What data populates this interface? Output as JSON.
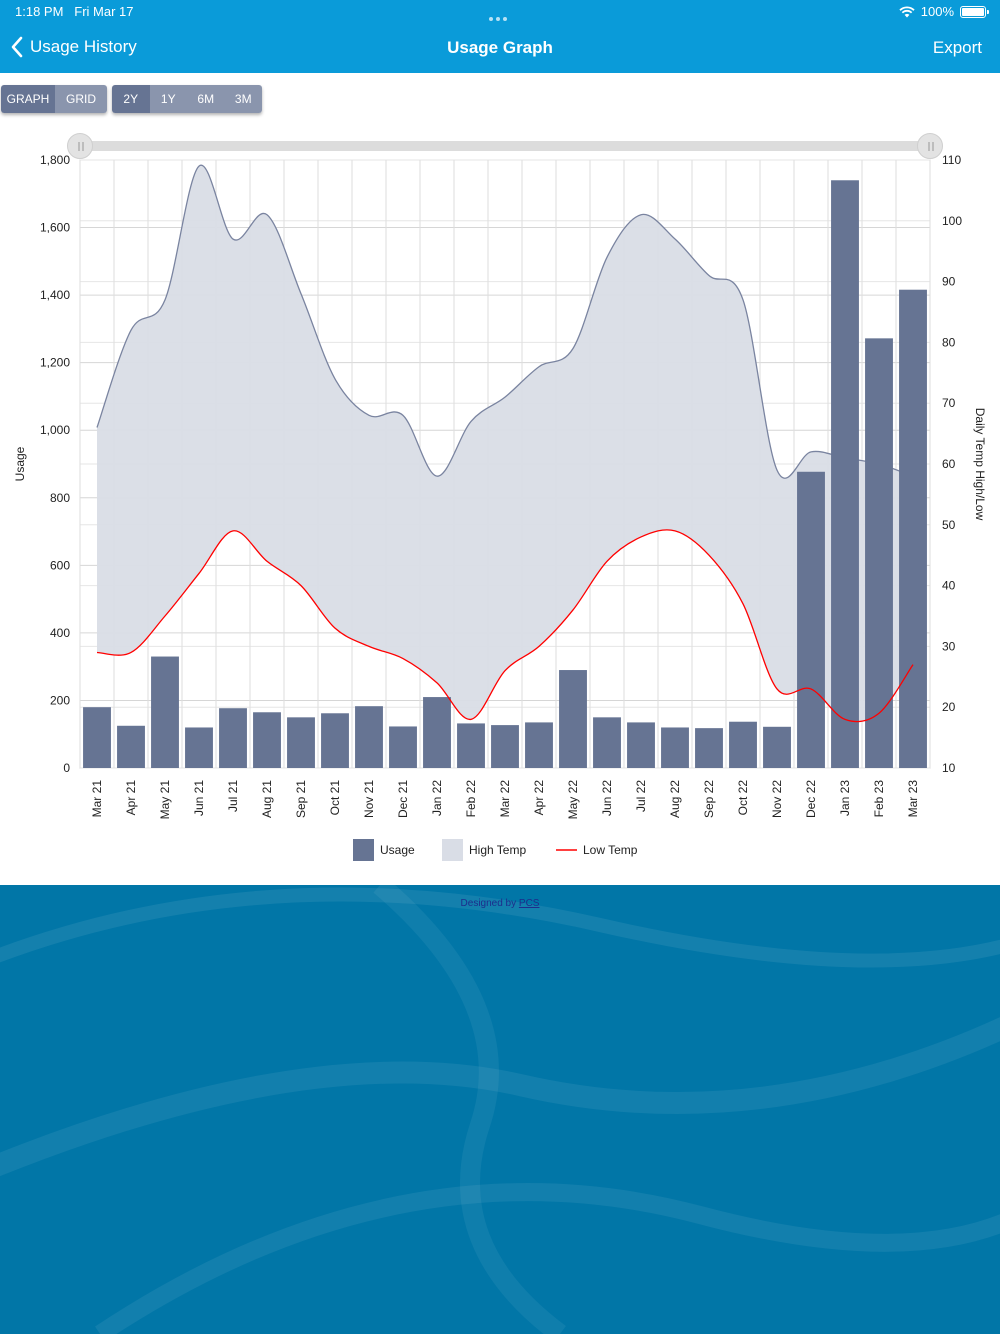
{
  "status_bar": {
    "time": "1:18 PM",
    "date": "Fri Mar 17",
    "battery": "100%"
  },
  "nav": {
    "back_label": "Usage History",
    "title": "Usage Graph",
    "export_label": "Export"
  },
  "view_toggle": [
    "GRAPH",
    "GRID"
  ],
  "range_toggle": [
    "2Y",
    "1Y",
    "6M",
    "3M"
  ],
  "selected_view": "GRAPH",
  "selected_range": "2Y",
  "footer": {
    "credit_prefix": "Designed by",
    "credit_link": "PCS"
  },
  "colors": {
    "header": "#0a9bd9",
    "usage_bar": "#667493",
    "high_temp_fill": "#d9dde6",
    "high_temp_line": "#7a84a0",
    "low_temp_line": "#ff0000",
    "footer": "#0176a7"
  },
  "chart_data": {
    "type": "bar",
    "categories": [
      "Mar 21",
      "Apr 21",
      "May 21",
      "Jun 21",
      "Jul 21",
      "Aug 21",
      "Sep 21",
      "Oct 21",
      "Nov 21",
      "Dec 21",
      "Jan 22",
      "Feb 22",
      "Mar 22",
      "Apr 22",
      "May 22",
      "Jun 22",
      "Jul 22",
      "Aug 22",
      "Sep 22",
      "Oct 22",
      "Nov 22",
      "Dec 22",
      "Jan 23",
      "Feb 23",
      "Mar 23"
    ],
    "series": [
      {
        "name": "Usage",
        "type": "bar",
        "axis": "left",
        "values": [
          180,
          125,
          330,
          120,
          177,
          165,
          150,
          162,
          183,
          123,
          210,
          132,
          127,
          135,
          290,
          150,
          135,
          120,
          118,
          137,
          122,
          877,
          1740,
          1272,
          1416
        ]
      },
      {
        "name": "High Temp",
        "type": "area",
        "axis": "right",
        "values": [
          66,
          82,
          87,
          109,
          97,
          101,
          88,
          74,
          68,
          68,
          58,
          67,
          71,
          76,
          79,
          94,
          101,
          97,
          91,
          87,
          59,
          62,
          61,
          60,
          58
        ]
      },
      {
        "name": "Low Temp",
        "type": "line",
        "axis": "right",
        "values": [
          29,
          29,
          35,
          42,
          49,
          44,
          40,
          33,
          30,
          28,
          24,
          18,
          26,
          30,
          36,
          44,
          48,
          49,
          45,
          37,
          23,
          23,
          18,
          19,
          27
        ]
      }
    ],
    "y_left": {
      "label": "Usage",
      "min": 0,
      "max": 1800,
      "ticks": [
        0,
        200,
        400,
        600,
        800,
        1000,
        1200,
        1400,
        1600,
        1800
      ],
      "tick_labels": [
        "0",
        "200",
        "400",
        "600",
        "800",
        "1,000",
        "1,200",
        "1,400",
        "1,600",
        "1,800"
      ]
    },
    "y_right": {
      "label": "Daily Temp High/Low",
      "min": 10,
      "max": 110,
      "ticks": [
        10,
        20,
        30,
        40,
        50,
        60,
        70,
        80,
        90,
        100,
        110
      ]
    },
    "grid": true,
    "legend_position": "bottom-center"
  }
}
